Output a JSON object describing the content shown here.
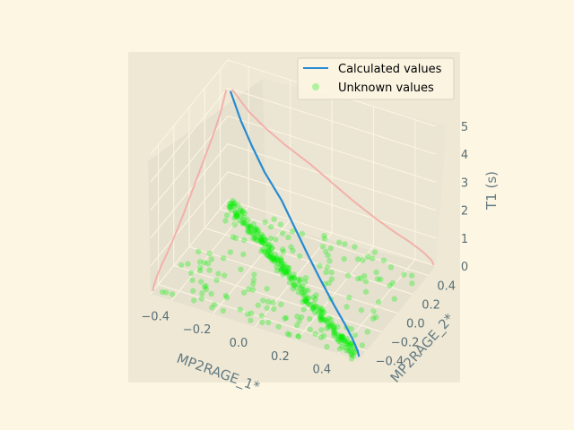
{
  "chart_data": {
    "type": "scatter",
    "projection": "3d",
    "xlabel": "MP2RAGE_1*",
    "ylabel": "MP2RAGE_2*",
    "zlabel": "T1 (s)",
    "xlim": [
      -0.5,
      0.5
    ],
    "ylim": [
      -0.5,
      0.5
    ],
    "zlim": [
      0,
      5
    ],
    "x_ticks": [
      "−0.4",
      "−0.2",
      "0.0",
      "0.2",
      "0.4"
    ],
    "y_ticks": [
      "−0.4",
      "−0.2",
      "0.0",
      "0.2",
      "0.4"
    ],
    "z_ticks": [
      "0",
      "1",
      "2",
      "3",
      "4",
      "5"
    ],
    "grid": true,
    "legend_placement": "upper right",
    "series": [
      {
        "name": "Calculated values",
        "kind": "line",
        "color": "#268bd2",
        "points": [
          [
            -0.48,
            0.48,
            4.0
          ],
          [
            -0.4,
            0.4,
            3.4
          ],
          [
            -0.32,
            0.32,
            3.0
          ],
          [
            -0.22,
            0.22,
            2.6
          ],
          [
            -0.1,
            0.12,
            2.2
          ],
          [
            0.0,
            0.02,
            1.8
          ],
          [
            0.1,
            -0.08,
            1.4
          ],
          [
            0.2,
            -0.18,
            1.05
          ],
          [
            0.3,
            -0.28,
            0.75
          ],
          [
            0.38,
            -0.36,
            0.55
          ],
          [
            0.44,
            -0.42,
            0.35
          ],
          [
            0.48,
            -0.46,
            0.15
          ],
          [
            0.49,
            -0.47,
            0.0
          ]
        ]
      },
      {
        "name": "Unknown values",
        "kind": "scatter",
        "color": "#00ee00",
        "note_count": 600
      }
    ],
    "projections": [
      {
        "plane": "x-z wall",
        "color": "#f4a5a0"
      },
      {
        "plane": "y-z wall",
        "color": "#f4a5a0"
      }
    ]
  }
}
